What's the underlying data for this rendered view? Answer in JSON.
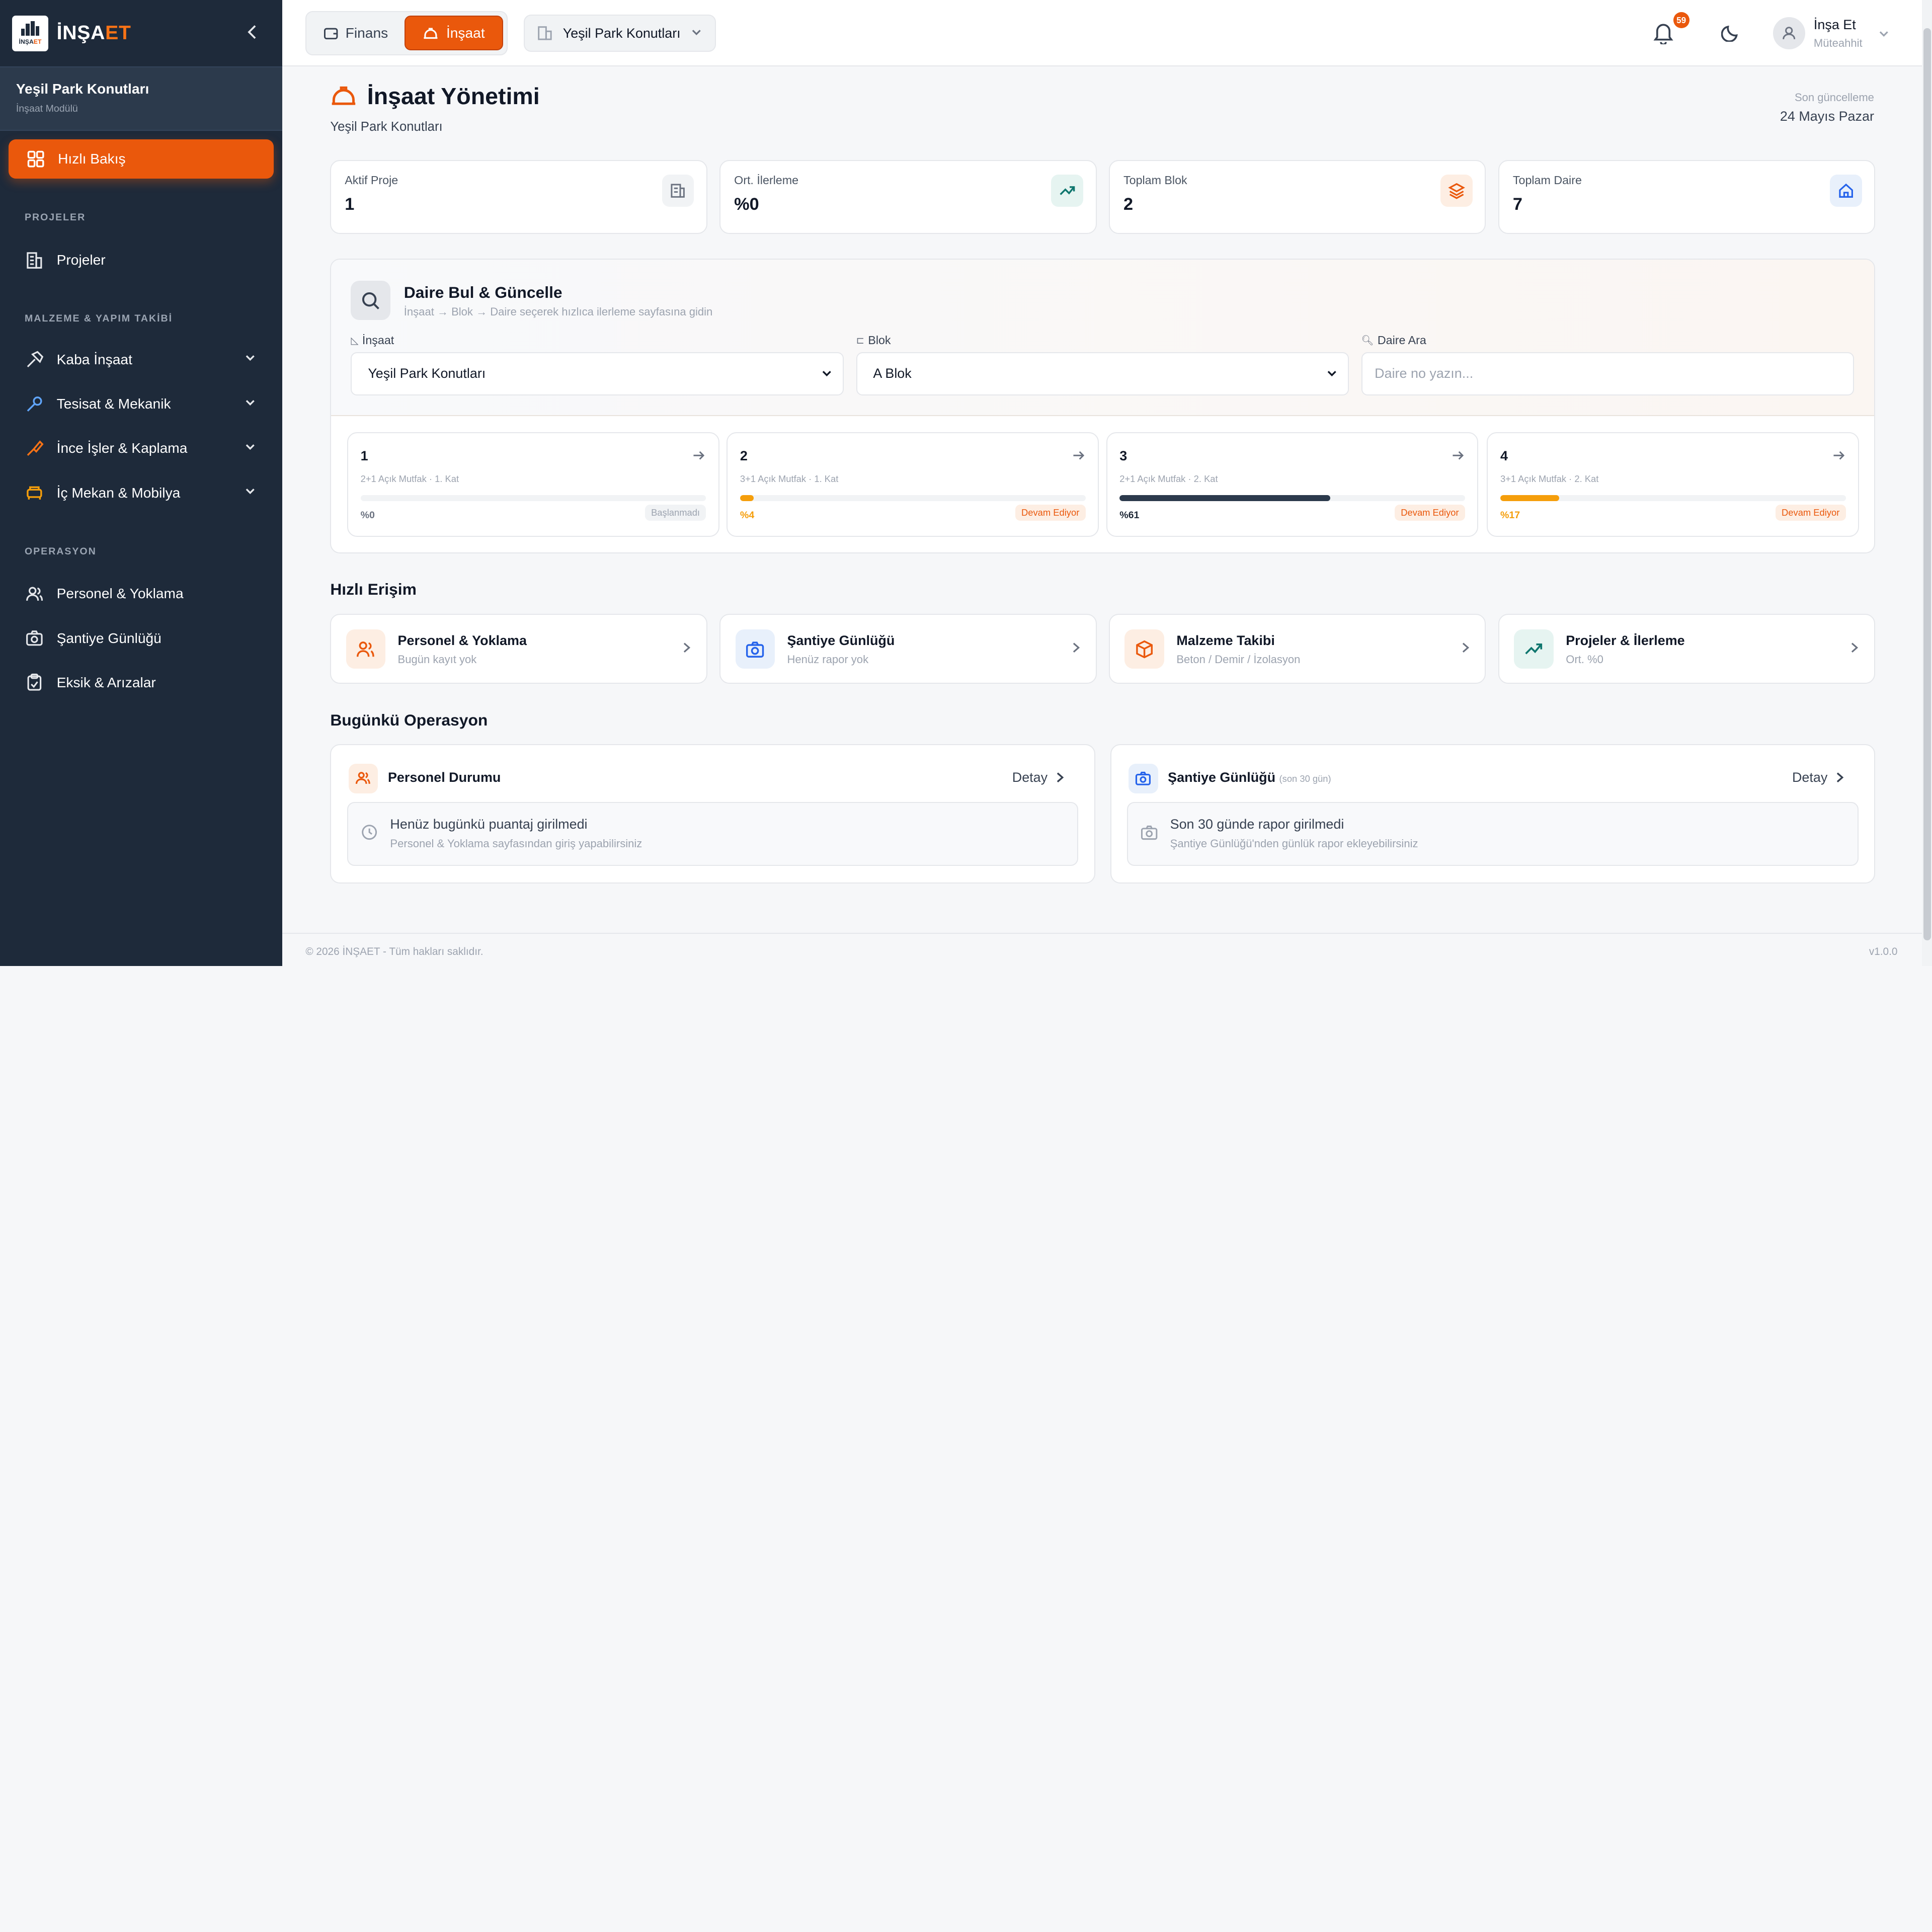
{
  "brand": {
    "name_main": "İNŞA",
    "name_accent": "ET",
    "logo_text_main": "İNŞA",
    "logo_text_accent": "ET"
  },
  "sidebar": {
    "project_name": "Yeşil Park Konutları",
    "project_module": "İnşaat Modülü",
    "active_item": "Hızlı Bakış",
    "sections": {
      "projects": "PROJELER",
      "materials": "MALZEME & YAPIM TAKİBİ",
      "operations": "OPERASYON"
    },
    "items": {
      "projeler": "Projeler",
      "kaba": "Kaba İnşaat",
      "tesisat": "Tesisat & Mekanik",
      "ince": "İnce İşler & Kaplama",
      "icmekan": "İç Mekan & Mobilya",
      "personel": "Personel & Yoklama",
      "santiye": "Şantiye Günlüğü",
      "eksik": "Eksik & Arızalar"
    }
  },
  "topbar": {
    "module_finans": "Finans",
    "module_insaat": "İnşaat",
    "project_select": "Yeşil Park Konutları",
    "notification_count": "59",
    "user_name": "İnşa Et",
    "user_role": "Müteahhit"
  },
  "page": {
    "title": "İnşaat Yönetimi",
    "subtitle": "Yeşil Park Konutları",
    "last_update_label": "Son güncelleme",
    "last_update": "24 Mayıs Pazar"
  },
  "stats": [
    {
      "label": "Aktif Proje",
      "value": "1",
      "icon": "building-icon",
      "color": "#6b7280",
      "bg": "#f1f3f5"
    },
    {
      "label": "Ort. İlerleme",
      "value": "%0",
      "icon": "trending-up-icon",
      "color": "#0f766e",
      "bg": "#e6f4f1"
    },
    {
      "label": "Toplam Blok",
      "value": "2",
      "icon": "layers-icon",
      "color": "#ea580c",
      "bg": "#fdeee3"
    },
    {
      "label": "Toplam Daire",
      "value": "7",
      "icon": "home-icon",
      "color": "#2563eb",
      "bg": "#e8f0fb"
    }
  ],
  "finder": {
    "title": "Daire Bul & Güncelle",
    "subtitle": "İnşaat → Blok → Daire seçerek hızlıca ilerleme sayfasına gidin",
    "label_insaat": "İnşaat",
    "label_blok": "Blok",
    "label_daire": "Daire Ara",
    "insaat_value": "Yeşil Park Konutları",
    "blok_value": "A Blok",
    "daire_placeholder": "Daire no yazın..."
  },
  "units": [
    {
      "no": "1",
      "type": "2+1 Açık Mutfak · 1. Kat",
      "progress": 0,
      "pct": "%0",
      "status": "Başlanmadı",
      "bar": "#e5e7eb",
      "pct_color": "#6b7280",
      "st_color": "#9ca3af",
      "st_bg": "#f1f3f5"
    },
    {
      "no": "2",
      "type": "3+1 Açık Mutfak · 1. Kat",
      "progress": 4,
      "pct": "%4",
      "status": "Devam Ediyor",
      "bar": "#f59e0b",
      "pct_color": "#f59e0b",
      "st_color": "#ea580c",
      "st_bg": "#fdeee3"
    },
    {
      "no": "3",
      "type": "2+1 Açık Mutfak · 2. Kat",
      "progress": 61,
      "pct": "%61",
      "status": "Devam Ediyor",
      "bar": "#2c3a4c",
      "pct_color": "#1f2937",
      "st_color": "#ea580c",
      "st_bg": "#fdeee3"
    },
    {
      "no": "4",
      "type": "3+1 Açık Mutfak · 2. Kat",
      "progress": 17,
      "pct": "%17",
      "status": "Devam Ediyor",
      "bar": "#f59e0b",
      "pct_color": "#f59e0b",
      "st_color": "#ea580c",
      "st_bg": "#fdeee3"
    }
  ],
  "quick_access": {
    "heading": "Hızlı Erişim",
    "items": [
      {
        "title": "Personel & Yoklama",
        "sub": "Bugün kayıt yok",
        "icon": "users-icon",
        "color": "#ea580c",
        "bg": "#fdeee3"
      },
      {
        "title": "Şantiye Günlüğü",
        "sub": "Henüz rapor yok",
        "icon": "camera-icon",
        "color": "#2563eb",
        "bg": "#e8f0fb"
      },
      {
        "title": "Malzeme Takibi",
        "sub": "Beton / Demir / İzolasyon",
        "icon": "box-icon",
        "color": "#ea580c",
        "bg": "#fdeee3"
      },
      {
        "title": "Projeler & İlerleme",
        "sub": "Ort. %0",
        "icon": "trending-up-icon",
        "color": "#0f766e",
        "bg": "#e6f4f1"
      }
    ]
  },
  "operations": {
    "heading": "Bugünkü Operasyon",
    "detail_label": "Detay",
    "personel": {
      "title": "Personel Durumu",
      "empty_title": "Henüz bugünkü puantaj girilmedi",
      "empty_sub": "Personel & Yoklama sayfasından giriş yapabilirsiniz"
    },
    "santiye": {
      "title": "Şantiye Günlüğü",
      "title_note": "(son 30 gün)",
      "empty_title": "Son 30 günde rapor girilmedi",
      "empty_sub": "Şantiye Günlüğü'nden günlük rapor ekleyebilirsiniz"
    }
  },
  "footer": {
    "copyright": "© 2026 İNŞAET - Tüm hakları saklıdır.",
    "version": "v1.0.0"
  }
}
